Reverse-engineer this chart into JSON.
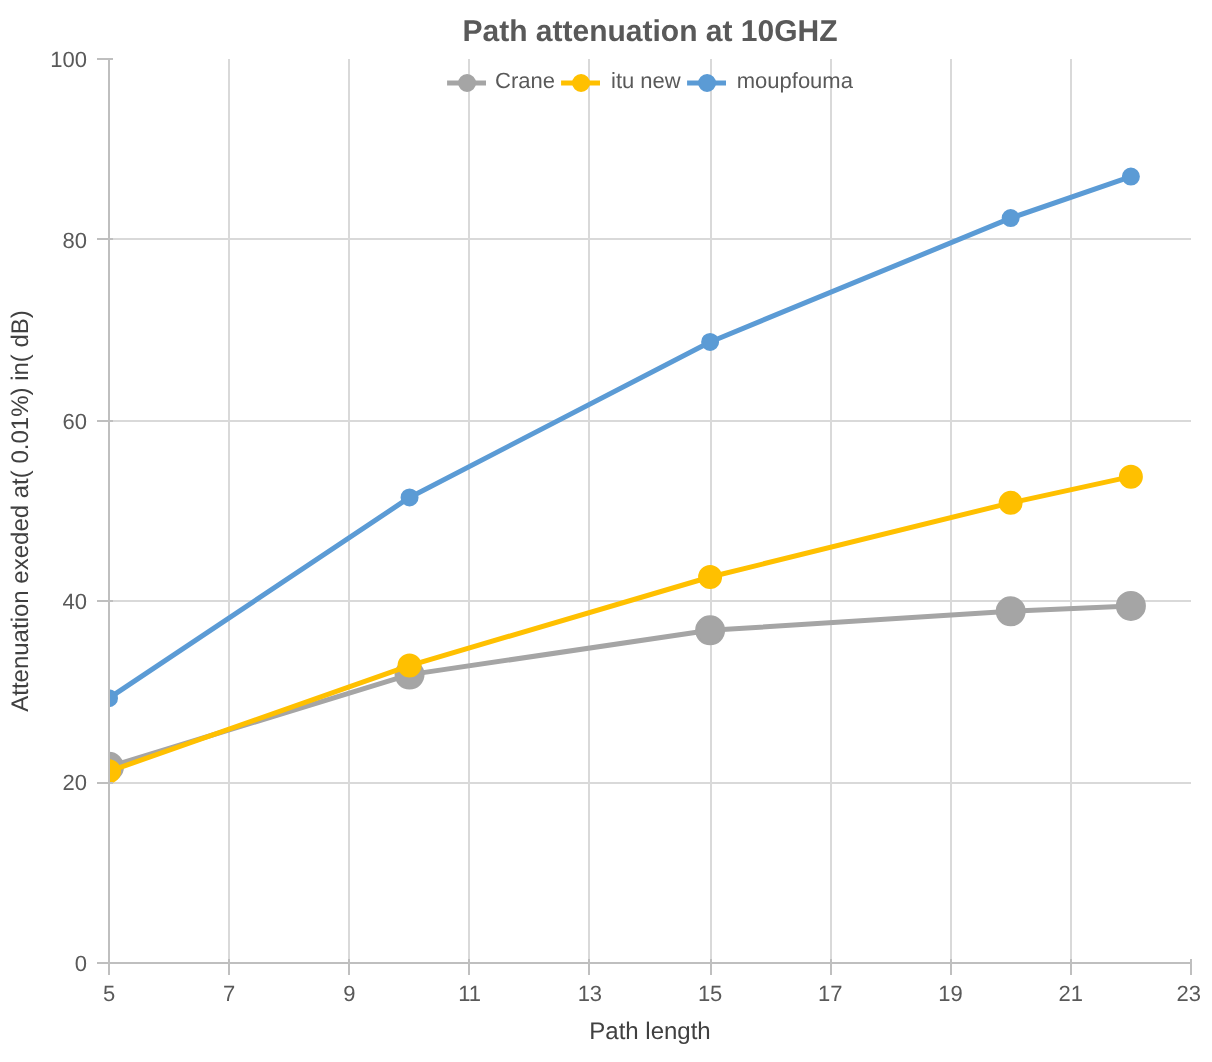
{
  "chart_data": {
    "type": "line",
    "title": "Path attenuation at 10GHZ",
    "xlabel": "Path length",
    "ylabel": "Attenuation exeded at( 0.01%) in( dB)",
    "x": [
      5,
      10,
      15,
      20,
      22
    ],
    "series": [
      {
        "name": "Crane",
        "color": "#a5a5a5",
        "values": [
          21.7,
          31.9,
          36.8,
          38.9,
          39.5
        ]
      },
      {
        "name": "itu new",
        "color": "#ffc000",
        "values": [
          21.2,
          32.9,
          42.7,
          50.9,
          53.8
        ]
      },
      {
        "name": "moupfouma",
        "color": "#5b9bd5",
        "values": [
          29.3,
          51.5,
          68.7,
          82.4,
          87.0
        ]
      }
    ],
    "xlim": [
      5,
      23
    ],
    "xticks": [
      5,
      7,
      9,
      11,
      13,
      15,
      17,
      19,
      21,
      23
    ],
    "ylim": [
      0,
      100
    ],
    "yticks": [
      0,
      20,
      40,
      60,
      80,
      100
    ],
    "grid": true,
    "legend": "top",
    "marker": "circle",
    "line_style": "solid"
  }
}
